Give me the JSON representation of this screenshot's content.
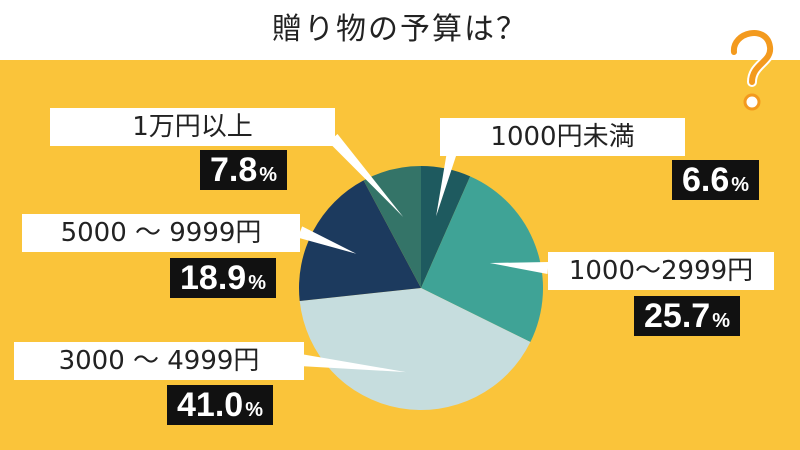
{
  "title": "贈り物の予算は？",
  "chart_data": {
    "type": "pie",
    "title": "贈り物の予算は？",
    "slices": [
      {
        "label": "1000円未満",
        "value": 6.6,
        "display": "6.6",
        "color": "#1E5A5F"
      },
      {
        "label": "1000～2999円",
        "value": 25.7,
        "display": "25.7",
        "color": "#3FA396"
      },
      {
        "label": "3000 ～ 4999円",
        "value": 41.0,
        "display": "41.0",
        "color": "#C6DDDE"
      },
      {
        "label": "5000 ～ 9999円",
        "value": 18.9,
        "display": "18.9",
        "color": "#1C3A5E"
      },
      {
        "label": "1万円以上",
        "value": 7.8,
        "display": "7.8",
        "color": "#347468"
      }
    ],
    "percent_sign": "%",
    "start_angle_deg": 0,
    "direction": "clockwise"
  },
  "colors": {
    "background": "#FAC43A",
    "title_bar": "#FFFFFF",
    "label_box": "#FFFFFF",
    "percent_box": "#111111",
    "question_mark": "#F39A1E"
  },
  "icons": {
    "decoration": "question-mark-icon"
  }
}
